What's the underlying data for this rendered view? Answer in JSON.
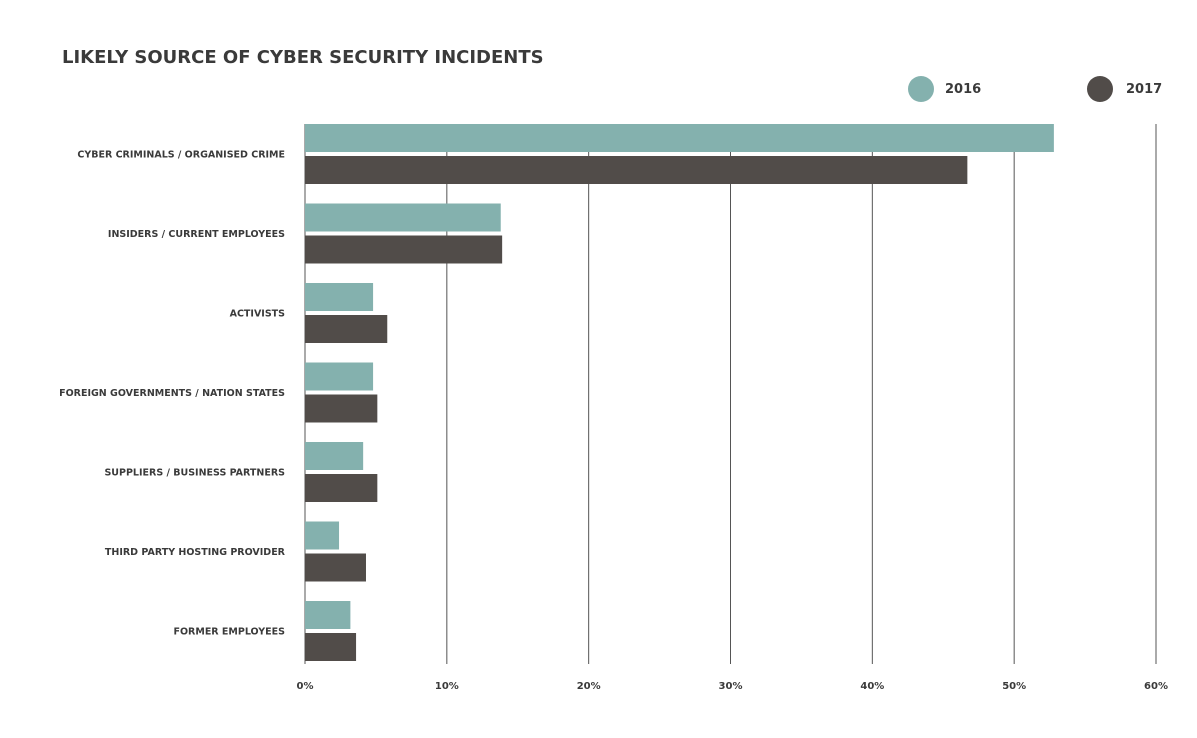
{
  "chart_data": {
    "type": "bar",
    "orientation": "horizontal",
    "title": "LIKELY SOURCE OF CYBER SECURITY INCIDENTS",
    "categories": [
      "CYBER CRIMINALS / ORGANISED CRIME",
      "INSIDERS / CURRENT EMPLOYEES",
      "ACTIVISTS",
      "FOREIGN GOVERNMENTS / NATION STATES",
      "SUPPLIERS / BUSINESS PARTNERS",
      "THIRD PARTY HOSTING PROVIDER",
      "FORMER EMPLOYEES"
    ],
    "series": [
      {
        "name": "2016",
        "color": "#84b1ae",
        "values": [
          52.8,
          13.8,
          4.8,
          4.8,
          4.1,
          2.4,
          3.2
        ]
      },
      {
        "name": "2017",
        "color": "#514c49",
        "values": [
          46.7,
          13.9,
          5.8,
          5.1,
          5.1,
          4.3,
          3.6
        ]
      }
    ],
    "xlim": [
      0,
      60
    ],
    "xticks": [
      "0%",
      "10%",
      "20%",
      "30%",
      "40%",
      "50%",
      "60%"
    ],
    "grid": true,
    "legend": "top-right"
  }
}
